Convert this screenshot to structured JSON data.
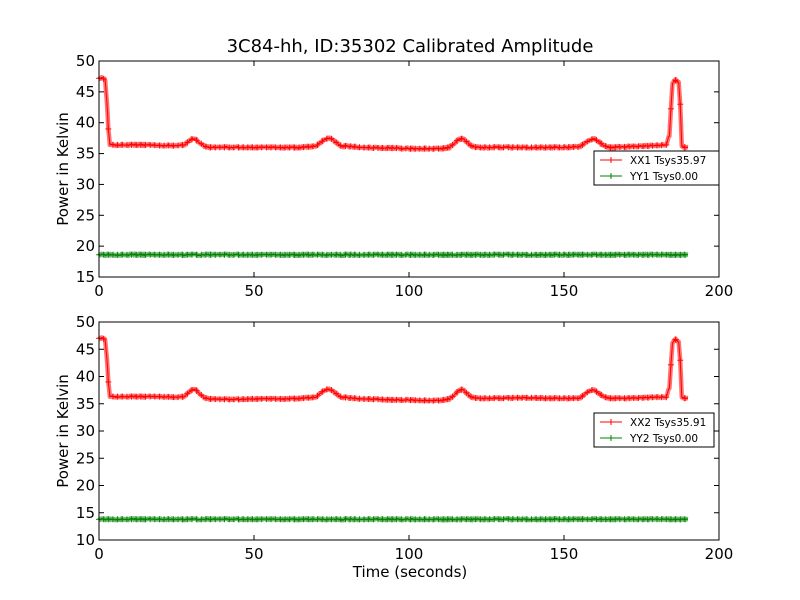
{
  "title": "3C84-hh, ID:35302 Calibrated Amplitude",
  "colors": {
    "xx": "#ff0000",
    "yy": "#008000",
    "frame": "#000000"
  },
  "chart_data": [
    {
      "type": "line",
      "xlabel": "",
      "ylabel": "Power in Kelvin",
      "xlim": [
        0,
        200
      ],
      "ylim": [
        15,
        50
      ],
      "xticks": [
        0,
        50,
        100,
        150,
        200
      ],
      "yticks": [
        15,
        20,
        25,
        30,
        35,
        40,
        45,
        50
      ],
      "grid": false,
      "legend_position": "right",
      "series": [
        {
          "name": "XX1 Tsys35.97",
          "color": "#ff0000",
          "x": [
            0,
            1,
            2,
            2.6,
            3,
            3.5,
            5,
            10,
            15,
            20,
            25,
            27,
            28,
            29,
            30,
            31,
            32,
            33,
            34,
            35,
            40,
            45,
            50,
            55,
            60,
            65,
            70,
            71,
            72,
            73,
            74,
            75,
            76,
            77,
            78,
            79,
            80,
            85,
            90,
            95,
            100,
            105,
            110,
            113,
            114,
            115,
            116,
            117,
            118,
            119,
            120,
            121,
            122,
            125,
            130,
            135,
            140,
            145,
            150,
            155,
            156,
            157,
            158,
            159,
            160,
            161,
            162,
            163,
            164,
            165,
            170,
            175,
            180,
            183,
            184,
            185,
            186,
            187,
            187.5,
            188,
            189,
            190
          ],
          "y": [
            47.2,
            47.2,
            47.0,
            43.0,
            39.0,
            36.5,
            36.4,
            36.4,
            36.4,
            36.3,
            36.3,
            36.4,
            36.6,
            37.0,
            37.3,
            37.3,
            37.0,
            36.6,
            36.2,
            36.0,
            36.0,
            36.0,
            36.0,
            36.0,
            36.0,
            36.0,
            36.2,
            36.6,
            37.0,
            37.4,
            37.5,
            37.4,
            37.0,
            36.6,
            36.3,
            36.2,
            36.2,
            36.0,
            35.9,
            35.9,
            35.8,
            35.8,
            35.8,
            36.0,
            36.4,
            36.9,
            37.3,
            37.4,
            37.2,
            36.7,
            36.3,
            36.1,
            36.0,
            36.0,
            36.0,
            36.0,
            36.0,
            36.0,
            36.0,
            36.1,
            36.4,
            36.8,
            37.1,
            37.3,
            37.3,
            37.0,
            36.6,
            36.3,
            36.1,
            36.0,
            36.1,
            36.2,
            36.3,
            36.4,
            38.0,
            46.5,
            46.9,
            46.5,
            43.0,
            36.2,
            36.0,
            36.0
          ]
        },
        {
          "name": "YY1 Tsys0.00",
          "color": "#008000",
          "x": [
            0,
            190
          ],
          "y": [
            18.6,
            18.6
          ]
        }
      ]
    },
    {
      "type": "line",
      "xlabel": "Time (seconds)",
      "ylabel": "Power in Kelvin",
      "xlim": [
        0,
        200
      ],
      "ylim": [
        10,
        50
      ],
      "xticks": [
        0,
        50,
        100,
        150,
        200
      ],
      "yticks": [
        10,
        15,
        20,
        25,
        30,
        35,
        40,
        45,
        50
      ],
      "grid": false,
      "legend_position": "right",
      "series": [
        {
          "name": "XX2 Tsys35.91",
          "color": "#ff0000",
          "x": [
            0,
            1,
            2,
            2.6,
            3,
            3.5,
            5,
            10,
            15,
            20,
            25,
            27,
            28,
            29,
            30,
            31,
            32,
            33,
            34,
            35,
            40,
            45,
            50,
            55,
            60,
            65,
            70,
            71,
            72,
            73,
            74,
            75,
            76,
            77,
            78,
            79,
            80,
            85,
            90,
            95,
            100,
            105,
            110,
            113,
            114,
            115,
            116,
            117,
            118,
            119,
            120,
            121,
            122,
            125,
            130,
            135,
            140,
            145,
            150,
            155,
            156,
            157,
            158,
            159,
            160,
            161,
            162,
            163,
            164,
            165,
            170,
            175,
            180,
            183,
            184,
            185,
            186,
            187,
            187.5,
            188,
            189,
            190
          ],
          "y": [
            47.0,
            47.0,
            46.8,
            43.0,
            39.0,
            36.4,
            36.3,
            36.3,
            36.3,
            36.3,
            36.2,
            36.3,
            36.6,
            37.1,
            37.5,
            37.6,
            37.2,
            36.6,
            36.1,
            35.9,
            35.8,
            35.8,
            35.9,
            35.9,
            35.9,
            36.0,
            36.2,
            36.7,
            37.2,
            37.6,
            37.7,
            37.5,
            37.1,
            36.6,
            36.3,
            36.2,
            36.1,
            35.9,
            35.8,
            35.7,
            35.7,
            35.6,
            35.6,
            35.9,
            36.3,
            36.9,
            37.4,
            37.6,
            37.3,
            36.7,
            36.3,
            36.1,
            36.0,
            36.0,
            36.0,
            36.1,
            36.1,
            36.0,
            36.0,
            36.0,
            36.4,
            36.9,
            37.3,
            37.5,
            37.4,
            37.0,
            36.6,
            36.3,
            36.1,
            36.0,
            36.0,
            36.1,
            36.2,
            36.2,
            38.0,
            46.3,
            46.8,
            46.3,
            43.0,
            36.2,
            36.0,
            36.0
          ]
        },
        {
          "name": "YY2 Tsys0.00",
          "color": "#008000",
          "x": [
            0,
            190
          ],
          "y": [
            13.8,
            13.8
          ]
        }
      ]
    }
  ]
}
